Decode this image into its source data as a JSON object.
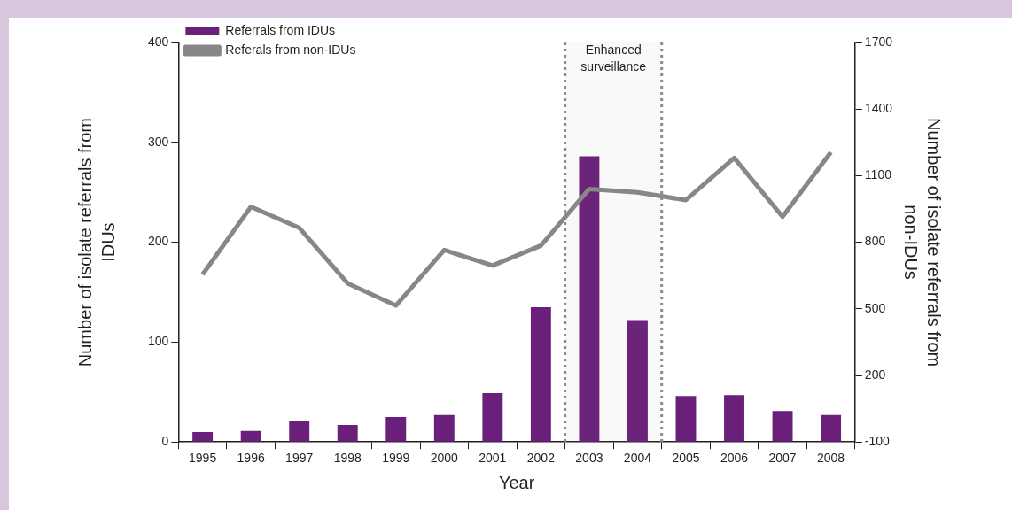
{
  "chart_data": {
    "type": "bar",
    "xlabel": "Year",
    "ylabel": "Number of isolate referrals from IDUs",
    "y2label": "Number of isolate referrals from non-IDUs",
    "categories": [
      "1995",
      "1996",
      "1997",
      "1998",
      "1999",
      "2000",
      "2001",
      "2002",
      "2003",
      "2004",
      "2005",
      "2006",
      "2007",
      "2008"
    ],
    "series": [
      {
        "name": "Referrals from IDUs",
        "color": "#6a1f7a",
        "values": [
          10,
          11,
          21,
          17,
          25,
          27,
          49,
          135,
          286,
          122,
          46,
          47,
          31,
          27
        ]
      },
      {
        "name": "Referals from non-IDUs",
        "type": "line",
        "axis": "y2",
        "color": "#878787",
        "values": [
          655,
          960,
          865,
          615,
          515,
          765,
          695,
          785,
          1040,
          1025,
          990,
          1180,
          915,
          1205
        ]
      }
    ],
    "ylim": [
      0,
      400
    ],
    "yticks": [
      0,
      100,
      200,
      300,
      400
    ],
    "y2lim": [
      -100,
      1700
    ],
    "y2ticks": [
      -100,
      200,
      500,
      800,
      1100,
      1400,
      1700
    ],
    "bands": [
      {
        "axis": "x",
        "from": "2003",
        "to": "2004",
        "label": "Enhanced surveillance",
        "color": "#8c8c8c"
      }
    ],
    "grid": false,
    "legend": "top left",
    "marker": "none",
    "line_style": "solid"
  }
}
